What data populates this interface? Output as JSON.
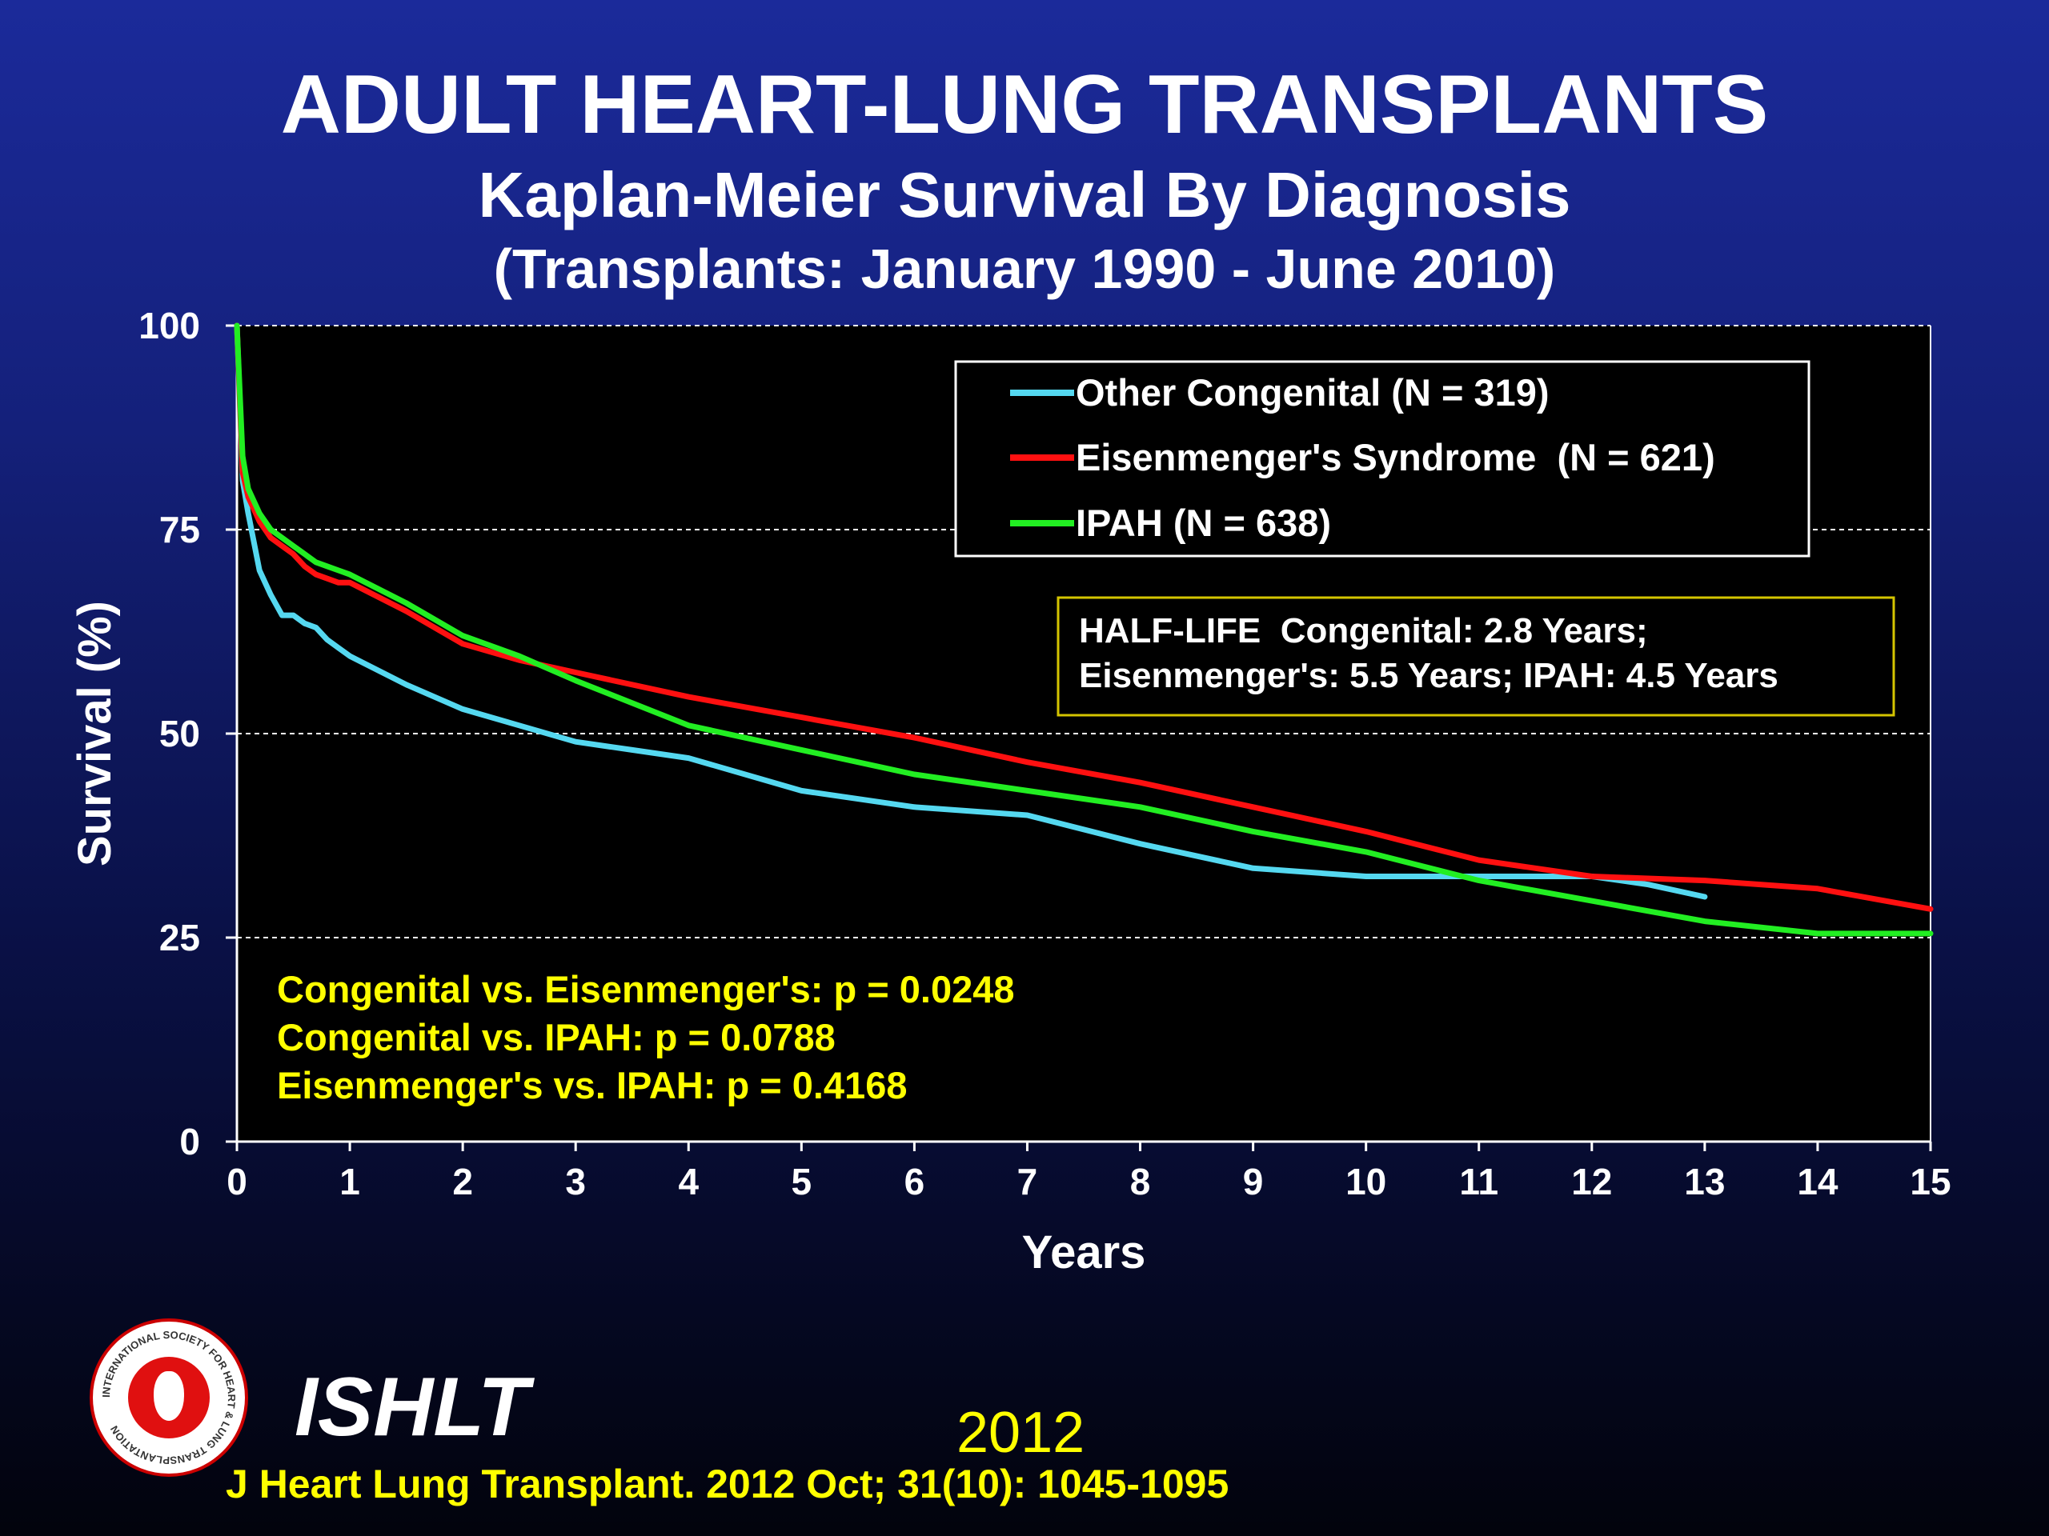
{
  "header": {
    "title": "ADULT HEART-LUNG TRANSPLANTS",
    "subtitle": "Kaplan-Meier Survival By Diagnosis",
    "period": "(Transplants: January 1990 - June 2010)"
  },
  "chart_data": {
    "type": "line",
    "xlabel": "Years",
    "ylabel": "Survival (%)",
    "xlim": [
      0,
      15
    ],
    "ylim": [
      0,
      100
    ],
    "x_ticks": [
      0,
      1,
      2,
      3,
      4,
      5,
      6,
      7,
      8,
      9,
      10,
      11,
      12,
      13,
      14,
      15
    ],
    "y_ticks": [
      0,
      25,
      50,
      75,
      100
    ],
    "grid": "horizontal dashed",
    "legend_position": "top-right",
    "background": "#000000",
    "series": [
      {
        "name": "Other Congenital (N = 319)",
        "color": "#55d8f0",
        "x": [
          0,
          0.05,
          0.1,
          0.2,
          0.3,
          0.4,
          0.5,
          0.6,
          0.7,
          0.8,
          0.9,
          1.0,
          1.5,
          2.0,
          2.5,
          3.0,
          3.5,
          4.0,
          5.0,
          6.0,
          7.0,
          8.0,
          9.0,
          10.0,
          11.0,
          12.0,
          12.5,
          13.0
        ],
        "y": [
          100,
          81,
          77,
          70,
          67,
          64.5,
          64.5,
          63.5,
          63,
          61.5,
          60.5,
          59.5,
          56,
          53,
          51,
          49,
          48,
          47,
          43,
          41,
          40,
          36.5,
          33.5,
          32.5,
          32.5,
          32.5,
          31.5,
          30
        ]
      },
      {
        "name": "Eisenmenger's Syndrome  (N = 621)",
        "color": "#ff1010",
        "x": [
          0,
          0.05,
          0.1,
          0.2,
          0.3,
          0.4,
          0.5,
          0.6,
          0.7,
          0.8,
          0.9,
          1.0,
          1.5,
          2.0,
          2.5,
          3.0,
          4.0,
          5.0,
          6.0,
          7.0,
          8.0,
          9.0,
          10.0,
          11.0,
          12.0,
          13.0,
          14.0,
          15.0
        ],
        "y": [
          100,
          82,
          79,
          76,
          74,
          73,
          72,
          70.5,
          69.5,
          69,
          68.5,
          68.5,
          65,
          61,
          59,
          57.5,
          54.5,
          52,
          49.5,
          46.5,
          44,
          41,
          38,
          34.5,
          32.5,
          32,
          31,
          28.5
        ]
      },
      {
        "name": "IPAH (N = 638)",
        "color": "#22ee22",
        "x": [
          0,
          0.05,
          0.1,
          0.2,
          0.3,
          0.4,
          0.5,
          0.6,
          0.7,
          0.8,
          0.9,
          1.0,
          1.5,
          2.0,
          2.5,
          3.0,
          4.0,
          5.0,
          6.0,
          7.0,
          8.0,
          9.0,
          10.0,
          11.0,
          12.0,
          13.0,
          14.0,
          15.0
        ],
        "y": [
          100,
          84,
          80,
          77,
          75,
          74,
          73,
          72,
          71,
          70.5,
          70,
          69.5,
          66,
          62,
          59.5,
          56.5,
          51,
          48,
          45,
          43,
          41,
          38,
          35.5,
          32,
          29.5,
          27,
          25.5,
          25.5
        ]
      }
    ],
    "annotations": {
      "half_life_line1": "HALF-LIFE  Congenital: 2.8 Years;",
      "half_life_line2": "Eisenmenger's: 5.5 Years; IPAH: 4.5 Years",
      "pvalues": [
        "Congenital vs. Eisenmenger's: p = 0.0248",
        "Congenital vs. IPAH: p = 0.0788",
        "Eisenmenger's vs. IPAH: p = 0.4168"
      ]
    }
  },
  "footer": {
    "org": "ISHLT",
    "year": "2012",
    "citation": "J Heart Lung Transplant.  2012 Oct; 31(10): 1045-1095",
    "logo_text": "INTERNATIONAL SOCIETY FOR HEART & LUNG TRANSPLANTATION",
    "logo_colors": {
      "ring": "#cc0000",
      "inner": "#e01010"
    }
  }
}
